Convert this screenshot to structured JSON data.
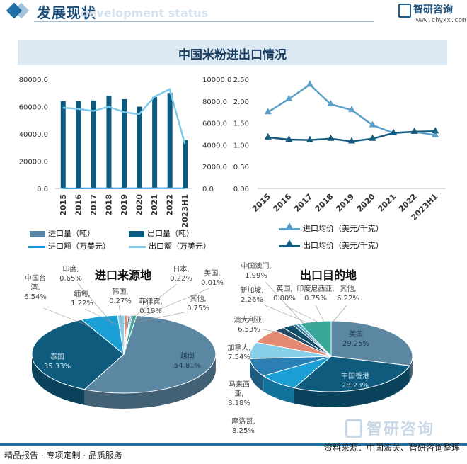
{
  "header": {
    "title": "发展现状",
    "watermark": "development status",
    "logo_name": "智研咨询",
    "logo_url": "www.chyxx.com"
  },
  "banner": {
    "title": "中国米粉进出口情况"
  },
  "chart_data": [
    {
      "type": "bar",
      "categories": [
        "2015",
        "2016",
        "2017",
        "2018",
        "2019",
        "2020",
        "2021",
        "2022",
        "2023H1"
      ],
      "ylim": [
        0,
        80000
      ],
      "yticks": [
        "0.0",
        "20000.0",
        "40000.0",
        "60000.0",
        "80000.0"
      ],
      "y2lim": [
        0,
        10000
      ],
      "y2ticks": [
        "0.0",
        "2000.0",
        "4000.0",
        "6000.0",
        "8000.0",
        "10000.0"
      ],
      "series": [
        {
          "name": "进口量（吨）",
          "type": "bar",
          "axis": "left",
          "color": "#5b86a3",
          "values": [
            90,
            110,
            100,
            120,
            100,
            100,
            110,
            120,
            60
          ]
        },
        {
          "name": "出口量（吨）",
          "type": "bar",
          "axis": "left",
          "color": "#0b5a80",
          "values": [
            64000,
            64000,
            64500,
            68000,
            65500,
            60000,
            67000,
            70000,
            35500
          ]
        },
        {
          "name": "进口额（万美元）",
          "type": "line",
          "axis": "right",
          "color": "#1a9ad6",
          "values": [
            10,
            12,
            15,
            16,
            14,
            15,
            25,
            28,
            15
          ]
        },
        {
          "name": "出口额（万美元）",
          "type": "line",
          "axis": "right",
          "color": "#7ccaeb",
          "values": [
            7400,
            7300,
            7100,
            7500,
            7000,
            6800,
            8400,
            9100,
            4100
          ]
        }
      ]
    },
    {
      "type": "line",
      "categories": [
        "2015",
        "2016",
        "2017",
        "2018",
        "2019",
        "2020",
        "2021",
        "2022",
        "2023H1"
      ],
      "ylim": [
        0,
        2.5
      ],
      "yticks": [
        "0.00",
        "0.50",
        "1.00",
        "1.50",
        "2.00",
        "2.50"
      ],
      "series": [
        {
          "name": "进口均价（美元/千克）",
          "color": "#5b9ec6",
          "values": [
            1.75,
            2.05,
            2.38,
            1.93,
            1.8,
            1.45,
            1.27,
            1.3,
            1.22
          ]
        },
        {
          "name": "出口均价（美元/千克）",
          "color": "#155c7f",
          "values": [
            1.17,
            1.12,
            1.11,
            1.14,
            1.08,
            1.14,
            1.27,
            1.3,
            1.31
          ]
        }
      ]
    },
    {
      "type": "pie",
      "title": "进口来源地",
      "slices": [
        {
          "label": "越南",
          "value": 54.81,
          "text": "54.81%",
          "color": "#5c87a3"
        },
        {
          "label": "泰国",
          "value": 35.33,
          "text": "35.33%",
          "color": "#0e5b7e"
        },
        {
          "label": "中国台湾",
          "value": 6.54,
          "text": "6.54%",
          "color": "#1b9fd4"
        },
        {
          "label": "缅甸",
          "value": 1.22,
          "text": "1.22%",
          "color": "#87cfe9"
        },
        {
          "label": "印度",
          "value": 0.65,
          "text": "0.65%",
          "color": "#e58a72"
        },
        {
          "label": "韩国",
          "value": 0.27,
          "text": "0.27%",
          "color": "#244a66"
        },
        {
          "label": "菲律宾",
          "value": 0.19,
          "text": "0.19%",
          "color": "#2f6f8f"
        },
        {
          "label": "日本",
          "value": 0.22,
          "text": "0.22%",
          "color": "#4aa3c9"
        },
        {
          "label": "美国",
          "value": 0.01,
          "text": "0.01%",
          "color": "#9cc3db"
        },
        {
          "label": "其他",
          "value": 0.75,
          "text": "0.75%",
          "color": "#3aa79b"
        }
      ]
    },
    {
      "type": "pie",
      "title": "出口目的地",
      "slices": [
        {
          "label": "美国",
          "value": 29.25,
          "text": "29.25%",
          "color": "#5c87a3"
        },
        {
          "label": "中国香港",
          "value": 28.23,
          "text": "28.23%",
          "color": "#0e5b7e"
        },
        {
          "label": "马来西亚",
          "value": 8.18,
          "text": "8.18%",
          "color": "#1b9fd4"
        },
        {
          "label": "摩洛哥",
          "value": 8.25,
          "text": "8.25%",
          "color": "#2b7fb2"
        },
        {
          "label": "加拿大",
          "value": 7.54,
          "text": "7.54%",
          "color": "#87cfe9"
        },
        {
          "label": "澳大利亚",
          "value": 6.53,
          "text": "6.53%",
          "color": "#e58a72"
        },
        {
          "label": "中国澳门",
          "value": 1.99,
          "text": "1.99%",
          "color": "#244a66"
        },
        {
          "label": "新加坡",
          "value": 2.26,
          "text": "2.26%",
          "color": "#0f4e69"
        },
        {
          "label": "英国",
          "value": 0.8,
          "text": "0.80%",
          "color": "#2f6f8f"
        },
        {
          "label": "印度尼西亚",
          "value": 0.75,
          "text": "0.75%",
          "color": "#5aaed0"
        },
        {
          "label": "其他",
          "value": 6.22,
          "text": "6.22%",
          "color": "#3aa79b"
        }
      ]
    }
  ],
  "labels": {
    "import_pie": [
      {
        "name": "越南",
        "pct": "54.81%"
      },
      {
        "name": "泰国",
        "pct": "35.33%"
      },
      {
        "name": "中国台湾",
        "pct": "6.54%"
      },
      {
        "name": "缅甸",
        "pct": "1.22%"
      },
      {
        "name": "印度",
        "pct": "0.65%"
      },
      {
        "name": "韩国",
        "pct": "0.27%"
      },
      {
        "name": "菲律宾",
        "pct": "0.19%"
      },
      {
        "name": "日本",
        "pct": "0.22%"
      },
      {
        "name": "美国",
        "pct": "0.01%"
      },
      {
        "name": "其他",
        "pct": "0.75%"
      }
    ],
    "export_pie": [
      {
        "name": "美国",
        "pct": "29.25%"
      },
      {
        "name": "中国香港",
        "pct": "28.23%"
      },
      {
        "name": "马来西亚",
        "pct": "8.18%"
      },
      {
        "name": "摩洛哥",
        "pct": "8.25%"
      },
      {
        "name": "加拿大",
        "pct": "7.54%"
      },
      {
        "name": "澳大利亚",
        "pct": "6.53%"
      },
      {
        "name": "中国澳门",
        "pct": "1.99%"
      },
      {
        "name": "新加坡",
        "pct": "2.26%"
      },
      {
        "name": "英国",
        "pct": "0.80%"
      },
      {
        "name": "印度尼西亚",
        "pct": "0.75%"
      },
      {
        "name": "其他",
        "pct": "6.22%"
      }
    ]
  },
  "footer": {
    "left": "精品报告 · 专项定制 · 品质服务",
    "right": "资料来源：中国海关、智研咨询整理",
    "watermark": "智研咨询"
  }
}
